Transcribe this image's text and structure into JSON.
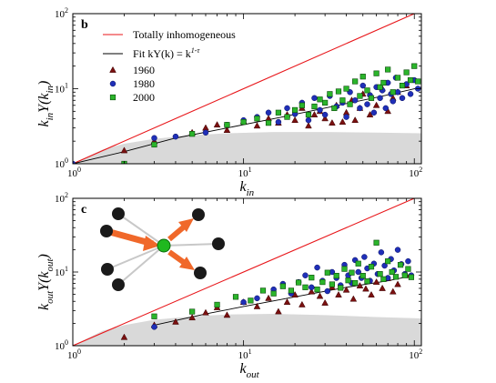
{
  "colors": {
    "ref_line": "#e8161a",
    "fit_line": "#000000",
    "series_1960": "#7a1010",
    "series_1980": "#1f2fb8",
    "series_2000": "#2bb52b",
    "baseline_fill": "#d9d9d9",
    "network_center": "#1fb81f",
    "network_arrow": "#f0682a",
    "network_node": "#1a1a1a",
    "network_edge": "#c8c8c8"
  },
  "chart_data": [
    {
      "type": "scatter",
      "panel_label": "b",
      "xlabel_main": "k",
      "xlabel_sub": "in",
      "ylabel_main": "k",
      "ylabel_sub": "in",
      "ylabel_mid": "Y(k",
      "ylabel_sub2": "in",
      "ylabel_end": ")",
      "xlim": [
        1,
        110
      ],
      "ylim": [
        1,
        100
      ],
      "x_log": true,
      "y_log": true,
      "grid": false,
      "legend_position": "top-left",
      "x_tick_labels": [
        {
          "value": 1,
          "base": "10",
          "exp": "0"
        },
        {
          "value": 10,
          "base": "10",
          "exp": "1"
        },
        {
          "value": 100,
          "base": "10",
          "exp": "2"
        }
      ],
      "y_tick_labels": [
        {
          "value": 1,
          "base": "10",
          "exp": "0"
        },
        {
          "value": 10,
          "base": "10",
          "exp": "1"
        },
        {
          "value": 100,
          "base": "10",
          "exp": "2"
        }
      ],
      "legend": [
        {
          "label": "Totally inhomogeneous",
          "kind": "ref_line"
        },
        {
          "label": "Fit  kY(k) = k",
          "exp": "1-τ",
          "kind": "fit_line"
        },
        {
          "label": "1960",
          "kind": "series_1960"
        },
        {
          "label": "1980",
          "kind": "series_1980"
        },
        {
          "label": "2000",
          "kind": "series_2000"
        }
      ],
      "reference_line": {
        "x": [
          1,
          110
        ],
        "y": [
          1,
          110
        ]
      },
      "fit_line": {
        "x": [
          1,
          2,
          4,
          8,
          16,
          32,
          64,
          110
        ],
        "y": [
          1.0,
          1.45,
          2.2,
          3.0,
          4.1,
          5.7,
          7.9,
          10.5
        ]
      },
      "baseline_band": {
        "x": [
          1,
          1.5,
          2,
          3,
          5,
          8,
          15,
          30,
          60,
          110
        ],
        "y": [
          1.0,
          1.55,
          1.85,
          2.15,
          2.4,
          2.55,
          2.65,
          2.65,
          2.6,
          2.55
        ]
      },
      "series": [
        {
          "name": "1960",
          "marker": "triangle",
          "x": [
            1,
            2,
            3,
            5,
            6,
            7,
            8,
            10,
            12,
            14,
            16,
            18,
            20,
            22,
            24,
            26,
            28,
            30,
            33,
            35,
            38,
            40,
            43,
            45,
            48,
            50,
            55,
            60,
            65,
            70,
            75,
            80,
            90
          ],
          "y": [
            1.0,
            1.5,
            2.0,
            2.6,
            3.0,
            3.3,
            2.8,
            3.7,
            3.2,
            4.0,
            3.5,
            4.5,
            3.8,
            5.5,
            3.2,
            4.5,
            5.0,
            4.0,
            3.5,
            6.0,
            3.6,
            4.8,
            7.0,
            3.8,
            5.5,
            8.5,
            4.5,
            6.0,
            10.0,
            5.0,
            7.5,
            9.0,
            11.0
          ]
        },
        {
          "name": "1980",
          "marker": "circle",
          "x": [
            1,
            3,
            4,
            6,
            8,
            10,
            12,
            14,
            16,
            18,
            20,
            22,
            24,
            26,
            28,
            30,
            32,
            35,
            38,
            40,
            42,
            45,
            48,
            50,
            53,
            55,
            58,
            60,
            63,
            65,
            68,
            70,
            73,
            75,
            78,
            80,
            85,
            90,
            95,
            100,
            105
          ],
          "y": [
            1.0,
            2.2,
            2.3,
            2.6,
            3.3,
            3.8,
            4.2,
            4.8,
            3.6,
            5.5,
            4.6,
            6.5,
            3.8,
            7.5,
            5.2,
            4.5,
            8.0,
            5.8,
            6.5,
            4.2,
            9.0,
            7.0,
            5.5,
            11.0,
            6.2,
            8.2,
            4.8,
            10.5,
            7.5,
            9.5,
            5.5,
            12.0,
            8.5,
            6.8,
            14.0,
            9.0,
            7.5,
            11.5,
            8.5,
            13.0,
            10.0
          ]
        },
        {
          "name": "2000",
          "marker": "square",
          "x": [
            2,
            3,
            5,
            8,
            10,
            12,
            14,
            16,
            18,
            20,
            22,
            24,
            26,
            28,
            30,
            32,
            34,
            36,
            38,
            40,
            42,
            45,
            48,
            50,
            53,
            56,
            60,
            63,
            66,
            70,
            75,
            80,
            85,
            90,
            95,
            100,
            105
          ],
          "y": [
            1.0,
            1.8,
            2.5,
            3.3,
            3.6,
            4.0,
            3.5,
            4.8,
            4.2,
            5.2,
            6.0,
            4.5,
            5.8,
            7.2,
            6.5,
            8.5,
            5.5,
            9.2,
            7.0,
            10.0,
            6.2,
            12.5,
            8.0,
            14.5,
            9.5,
            7.5,
            16.0,
            10.5,
            12.0,
            18.0,
            9.0,
            14.0,
            11.0,
            16.5,
            13.0,
            20.0,
            12.5
          ]
        }
      ]
    },
    {
      "type": "scatter",
      "panel_label": "c",
      "xlabel_main": "k",
      "xlabel_sub": "out",
      "ylabel_main": "k",
      "ylabel_sub": "out",
      "ylabel_mid": "Y(k",
      "ylabel_sub2": "out",
      "ylabel_end": ")",
      "xlim": [
        1,
        110
      ],
      "ylim": [
        1,
        100
      ],
      "x_log": true,
      "y_log": true,
      "grid": false,
      "x_tick_labels": [
        {
          "value": 1,
          "base": "10",
          "exp": "0"
        },
        {
          "value": 10,
          "base": "10",
          "exp": "1"
        },
        {
          "value": 100,
          "base": "10",
          "exp": "2"
        }
      ],
      "y_tick_labels": [
        {
          "value": 1,
          "base": "10",
          "exp": "0"
        },
        {
          "value": 10,
          "base": "10",
          "exp": "1"
        },
        {
          "value": 100,
          "base": "10",
          "exp": "2"
        }
      ],
      "reference_line": {
        "x": [
          1,
          110
        ],
        "y": [
          1,
          110
        ]
      },
      "fit_line": {
        "x": [
          3,
          6,
          10,
          20,
          40,
          70,
          95
        ],
        "y": [
          1.9,
          2.7,
          3.4,
          4.6,
          6.2,
          7.6,
          8.8
        ]
      },
      "baseline_band": {
        "x": [
          1,
          1.5,
          2,
          3,
          5,
          8,
          15,
          30,
          60,
          110
        ],
        "y": [
          1.0,
          1.6,
          1.9,
          2.25,
          2.5,
          2.65,
          2.7,
          2.6,
          2.45,
          2.35
        ]
      },
      "series": [
        {
          "name": "1960",
          "marker": "triangle",
          "x": [
            2,
            3,
            4,
            5,
            6,
            7,
            8,
            10,
            12,
            14,
            16,
            18,
            20,
            22,
            25,
            28,
            30,
            33,
            36,
            40,
            44,
            48,
            52,
            56,
            60,
            65,
            70,
            75,
            80,
            90
          ],
          "y": [
            1.3,
            1.9,
            2.1,
            2.4,
            2.8,
            3.3,
            2.6,
            3.9,
            3.4,
            4.4,
            2.9,
            3.9,
            4.9,
            3.6,
            5.4,
            4.7,
            3.8,
            6.2,
            4.9,
            5.7,
            4.3,
            6.5,
            5.9,
            4.9,
            7.3,
            6.0,
            8.2,
            5.4,
            6.8,
            9.0
          ]
        },
        {
          "name": "1980",
          "marker": "circle",
          "x": [
            3,
            10,
            12,
            15,
            17,
            19,
            21,
            23,
            25,
            27,
            29,
            31,
            33,
            35,
            37,
            39,
            41,
            43,
            45,
            47,
            49,
            51,
            53,
            55,
            58,
            61,
            64,
            67,
            70,
            73,
            76,
            80,
            84,
            88,
            92,
            96
          ],
          "y": [
            1.8,
            3.9,
            4.4,
            5.8,
            6.9,
            5.1,
            7.3,
            9.0,
            6.2,
            11.5,
            7.6,
            5.5,
            10.0,
            8.3,
            6.6,
            12.5,
            9.0,
            7.1,
            14.5,
            10.0,
            8.3,
            16.0,
            11.2,
            7.6,
            13.0,
            9.4,
            18.5,
            12.2,
            8.3,
            15.0,
            10.5,
            20.0,
            12.8,
            9.4,
            14.0,
            9.0
          ]
        },
        {
          "name": "2000",
          "marker": "square",
          "x": [
            3,
            5,
            7,
            9,
            11,
            13,
            15,
            17,
            19,
            21,
            23,
            25,
            27,
            29,
            31,
            33,
            35,
            37,
            39,
            41,
            43,
            45,
            47,
            50,
            53,
            56,
            60,
            63,
            66,
            70,
            74,
            78,
            83,
            88,
            92,
            96
          ],
          "y": [
            2.5,
            2.9,
            3.6,
            4.6,
            4.1,
            5.6,
            5.1,
            6.4,
            5.6,
            7.2,
            6.2,
            8.4,
            5.8,
            7.3,
            9.8,
            6.8,
            8.9,
            6.1,
            11.0,
            7.7,
            9.8,
            7.1,
            13.0,
            8.9,
            7.5,
            11.8,
            25.0,
            9.4,
            8.0,
            14.0,
            10.0,
            8.6,
            12.5,
            9.0,
            11.0,
            8.5
          ]
        }
      ]
    }
  ]
}
